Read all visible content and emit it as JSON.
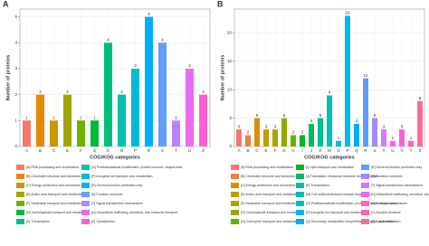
{
  "chart_data": [
    {
      "type": "bar",
      "panel": "A",
      "x_label": "COG/KOG categories",
      "y_label": "Number of proteins",
      "categories": [
        "A",
        "B",
        "C",
        "E",
        "F",
        "G",
        "K",
        "O",
        "P",
        "R",
        "S",
        "T",
        "U",
        "Z"
      ],
      "values": [
        1,
        2,
        1,
        2,
        1,
        1,
        4,
        2,
        3,
        5,
        4,
        1,
        3,
        2
      ],
      "colors": [
        "#f8766d",
        "#e58700",
        "#c99800",
        "#a3a500",
        "#6bb100",
        "#00ba38",
        "#00bf7d",
        "#00c0af",
        "#00bcd8",
        "#00b0f6",
        "#619cff",
        "#b983ff",
        "#e76bf3",
        "#fd61d1"
      ],
      "legend": [
        "[A] RNA processing and modification",
        "[B] Chromatin structure and dynamics",
        "[C] Energy production and conversion",
        "[E] Amino acid transport and metabolism",
        "[F] Nucleotide transport and metabolism",
        "[G] Carbohydrate transport and metabolism",
        "[K] Transcription",
        "[O] Posttranslational modification, protein turnover, chaperones",
        "[P] Inorganic ion transport and metabolism",
        "[R] General function prediction only",
        "[S] Function unknown",
        "[T] Signal transduction mechanisms",
        "[U] Intracellular trafficking, secretion, and vesicular transport",
        "[Z] Cytoskeleton"
      ],
      "ylim": [
        0,
        5.3
      ],
      "yticks": [
        0,
        1,
        2,
        3,
        4,
        5
      ],
      "grid": true
    },
    {
      "type": "bar",
      "panel": "B",
      "x_label": "COG/KOG categories",
      "y_label": "Number of proteins",
      "categories": [
        "A",
        "B",
        "C",
        "E",
        "F",
        "G",
        "H",
        "I",
        "J",
        "K",
        "M",
        "O",
        "P",
        "Q",
        "R",
        "S",
        "T",
        "U",
        "V",
        "Y",
        "Z"
      ],
      "values": [
        3,
        2,
        5,
        3,
        3,
        5,
        2,
        2,
        4,
        5,
        9,
        1,
        23,
        4,
        12,
        5,
        3,
        1,
        3,
        1,
        8
      ],
      "colors": [
        "#f8766d",
        "#ec8239",
        "#db8e00",
        "#c79800",
        "#aea200",
        "#8fab00",
        "#64b200",
        "#00b81b",
        "#00bd5c",
        "#00c08d",
        "#00c0b5",
        "#00bdd2",
        "#00b6eb",
        "#00abfd",
        "#619cff",
        "#a58aff",
        "#d078ff",
        "#ec69ef",
        "#fc61d5",
        "#ff64b3",
        "#ff6c91"
      ],
      "legend": [
        "[A] RNA processing and modification",
        "[B] Chromatin structure and dynamics",
        "[C] Energy production and conversion",
        "[E] Amino acid transport and metabolism",
        "[F] Nucleotide transport and metabolism",
        "[G] Carbohydrate transport and metabolism",
        "[H] Coenzyme transport and metabolism",
        "[I] Lipid transport and metabolism",
        "[J] Translation, ribosomal structure and biogenesis",
        "[K] Transcription",
        "[M] Cell wall/membrane/envelope biogenesis",
        "[O] Posttranslational modification, protein turnover, chaperones",
        "[P] Inorganic ion transport and metabolism",
        "[Q] Secondary metabolites biosynthesis, transport and catabolism",
        "[R] General function prediction only",
        "[S] Function unknown",
        "[T] Signal transduction mechanisms",
        "[U] Intracellular trafficking, secretion, and vesicular transport",
        "[V] Defense mechanisms",
        "[Y] Nuclear structure",
        "[Z] Cytoskeleton"
      ],
      "ylim": [
        0,
        24.2
      ],
      "yticks": [
        0,
        5,
        10,
        15,
        20
      ],
      "grid": true
    }
  ]
}
